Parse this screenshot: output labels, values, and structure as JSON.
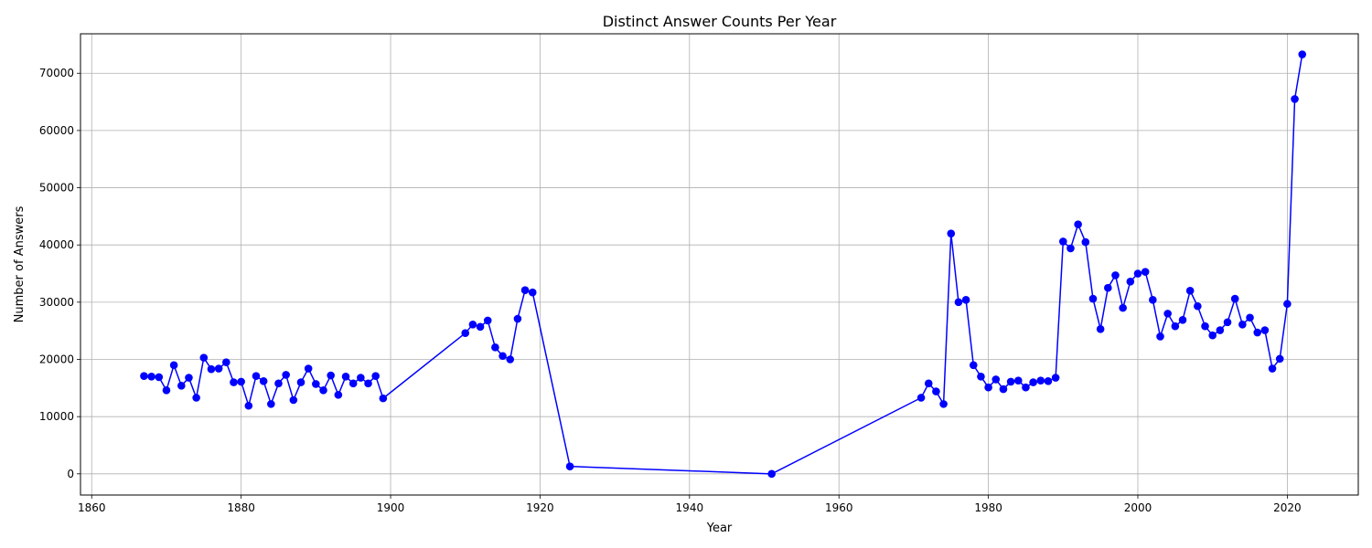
{
  "chart_data": {
    "type": "line",
    "title": "Distinct Answer Counts Per Year",
    "xlabel": "Year",
    "ylabel": "Number of Answers",
    "xlim": [
      1858.5,
      2029.5
    ],
    "ylim": [
      -3700,
      76900
    ],
    "xticks": [
      1860,
      1880,
      1900,
      1920,
      1940,
      1960,
      1980,
      2000,
      2020
    ],
    "yticks": [
      0,
      10000,
      20000,
      30000,
      40000,
      50000,
      60000,
      70000
    ],
    "grid": true,
    "legend": "none",
    "line_color": "#0000ff",
    "marker": "circle",
    "series": [
      {
        "x": [
          1867,
          1868,
          1869,
          1870,
          1871,
          1872,
          1873,
          1874,
          1875,
          1876,
          1877,
          1878,
          1879,
          1880,
          1881,
          1882,
          1883,
          1884,
          1885,
          1886,
          1887,
          1888,
          1889,
          1890,
          1891,
          1892,
          1893,
          1894,
          1895,
          1896,
          1897,
          1898,
          1899,
          1910,
          1911,
          1912,
          1913,
          1914,
          1915,
          1916,
          1917,
          1918,
          1919,
          1924,
          1951,
          1971,
          1972,
          1973,
          1974,
          1975,
          1976,
          1977,
          1978,
          1979,
          1980,
          1981,
          1982,
          1983,
          1984,
          1985,
          1986,
          1987,
          1988,
          1989,
          1990,
          1991,
          1992,
          1993,
          1994,
          1995,
          1996,
          1997,
          1998,
          1999,
          2000,
          2001,
          2002,
          2003,
          2004,
          2005,
          2006,
          2007,
          2008,
          2009,
          2010,
          2011,
          2012,
          2013,
          2014,
          2015,
          2016,
          2017,
          2018,
          2019,
          2020,
          2021,
          2022
        ],
        "y": [
          17100,
          17000,
          16900,
          14600,
          19000,
          15400,
          16800,
          13300,
          20300,
          18300,
          18400,
          19500,
          16000,
          16100,
          11900,
          17100,
          16200,
          12200,
          15800,
          17300,
          12900,
          16000,
          18400,
          15700,
          14600,
          17200,
          13800,
          17000,
          15800,
          16800,
          15800,
          17100,
          13200,
          24600,
          26100,
          25700,
          26800,
          22100,
          20600,
          20000,
          27100,
          32100,
          31700,
          1300,
          0,
          13300,
          15800,
          14400,
          12200,
          42000,
          30000,
          30400,
          19000,
          17000,
          15100,
          16500,
          14800,
          16100,
          16300,
          15100,
          16000,
          16300,
          16200,
          16800,
          40600,
          39400,
          43600,
          40500,
          30600,
          25300,
          32500,
          34700,
          29000,
          33600,
          35000,
          35300,
          30400,
          24000,
          28000,
          25800,
          26900,
          32000,
          29300,
          25800,
          24200,
          25100,
          26500,
          30600,
          26100,
          27300,
          24700,
          25100,
          18400,
          20100,
          29700,
          65500,
          73300
        ]
      }
    ]
  }
}
